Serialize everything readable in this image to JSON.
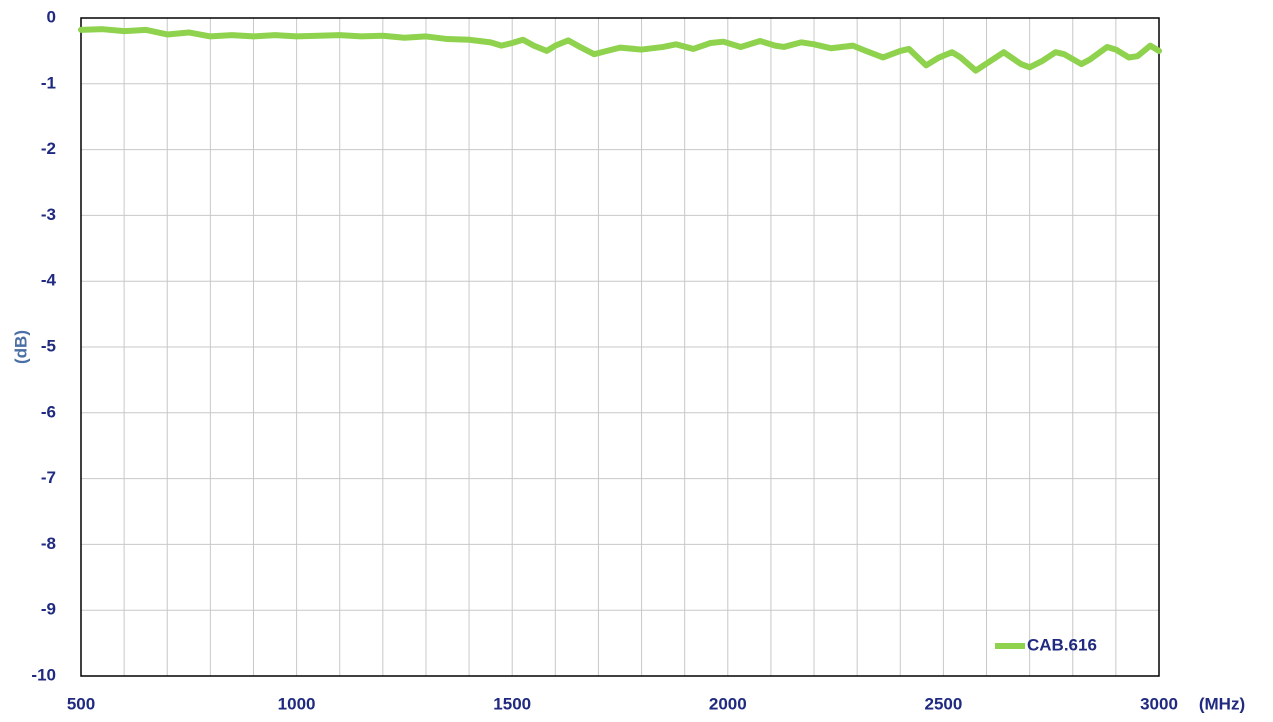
{
  "chart_data": {
    "type": "line",
    "y_label": "(dB)",
    "x_unit": "(MHz)",
    "xlim": [
      500,
      3000
    ],
    "xticks": [
      500,
      1000,
      1500,
      2000,
      2500,
      3000
    ],
    "xgrid": [
      600,
      700,
      800,
      900,
      1100,
      1200,
      1300,
      1400,
      1600,
      1700,
      1800,
      1900,
      2100,
      2200,
      2300,
      2400,
      2600,
      2700,
      2800,
      2900
    ],
    "ylim": [
      -10,
      0
    ],
    "yticks": [
      0,
      -1,
      -2,
      -3,
      -4,
      -5,
      -6,
      -7,
      -8,
      -9,
      -10
    ],
    "grid": true,
    "legend": "lower right",
    "series": [
      {
        "name": "CAB.616",
        "color": "#8ed24e",
        "x": [
          500,
          550,
          600,
          650,
          700,
          750,
          800,
          850,
          900,
          950,
          1000,
          1050,
          1100,
          1150,
          1200,
          1250,
          1300,
          1350,
          1400,
          1450,
          1475,
          1500,
          1525,
          1550,
          1580,
          1600,
          1630,
          1660,
          1690,
          1720,
          1750,
          1800,
          1850,
          1880,
          1920,
          1960,
          1990,
          2030,
          2075,
          2110,
          2130,
          2170,
          2200,
          2240,
          2290,
          2320,
          2360,
          2400,
          2420,
          2460,
          2490,
          2520,
          2540,
          2575,
          2610,
          2640,
          2680,
          2700,
          2730,
          2760,
          2780,
          2820,
          2840,
          2880,
          2900,
          2930,
          2950,
          2980,
          3000
        ],
        "values": [
          -0.18,
          -0.17,
          -0.2,
          -0.18,
          -0.25,
          -0.22,
          -0.28,
          -0.26,
          -0.28,
          -0.26,
          -0.28,
          -0.27,
          -0.26,
          -0.28,
          -0.27,
          -0.3,
          -0.28,
          -0.32,
          -0.33,
          -0.37,
          -0.42,
          -0.38,
          -0.33,
          -0.42,
          -0.5,
          -0.42,
          -0.34,
          -0.45,
          -0.55,
          -0.5,
          -0.45,
          -0.48,
          -0.44,
          -0.4,
          -0.47,
          -0.38,
          -0.36,
          -0.44,
          -0.35,
          -0.42,
          -0.44,
          -0.37,
          -0.4,
          -0.46,
          -0.42,
          -0.5,
          -0.6,
          -0.5,
          -0.47,
          -0.72,
          -0.6,
          -0.52,
          -0.6,
          -0.8,
          -0.65,
          -0.52,
          -0.7,
          -0.75,
          -0.65,
          -0.52,
          -0.55,
          -0.7,
          -0.63,
          -0.44,
          -0.48,
          -0.6,
          -0.58,
          -0.42,
          -0.5
        ]
      }
    ]
  }
}
